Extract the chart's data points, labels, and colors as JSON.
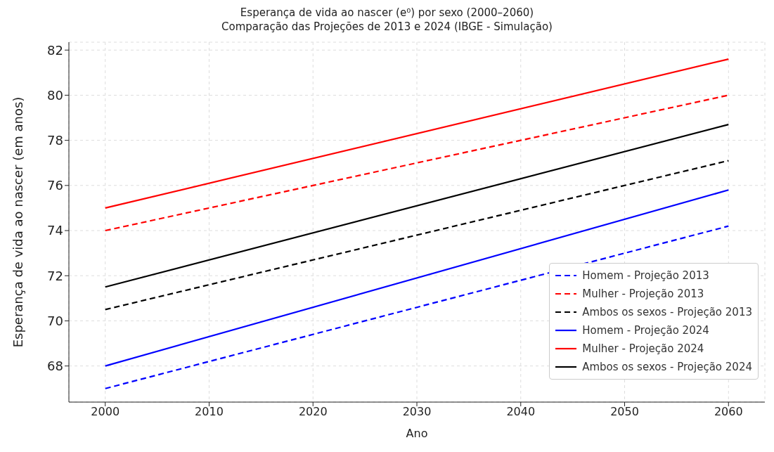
{
  "chart_data": {
    "type": "line",
    "title": "Esperança de vida ao nascer (e⁰) por sexo (2000–2060)",
    "subtitle": "Comparação das Projeções de 2013 e 2024 (IBGE - Simulação)",
    "xlabel": "Ano",
    "ylabel": "Esperança de vida ao nascer (em anos)",
    "xlim": [
      1996.5,
      2063.5
    ],
    "xticks": [
      2000,
      2010,
      2020,
      2030,
      2040,
      2050,
      2060
    ],
    "ylim": [
      66.4,
      82.35
    ],
    "yticks": [
      68,
      70,
      72,
      74,
      76,
      78,
      80,
      82
    ],
    "grid": true,
    "legend": "bottom right",
    "marker": "none",
    "x": [
      2000,
      2060
    ],
    "series": [
      {
        "name": "Homem - Projeção 2013",
        "color": "#0000ff",
        "line_style": "dashed",
        "values": [
          67,
          74.2
        ]
      },
      {
        "name": "Mulher - Projeção 2013",
        "color": "#ff0000",
        "line_style": "dashed",
        "values": [
          74,
          80
        ]
      },
      {
        "name": "Ambos os sexos - Projeção 2013",
        "color": "#000000",
        "line_style": "dashed",
        "values": [
          70.5,
          77.1
        ]
      },
      {
        "name": "Homem - Projeção 2024",
        "color": "#0000ff",
        "line_style": "solid",
        "values": [
          68,
          75.8
        ]
      },
      {
        "name": "Mulher - Projeção 2024",
        "color": "#ff0000",
        "line_style": "solid",
        "values": [
          75,
          81.6
        ]
      },
      {
        "name": "Ambos os sexos - Projeção 2024",
        "color": "#000000",
        "line_style": "solid",
        "values": [
          71.5,
          78.7
        ]
      }
    ]
  }
}
